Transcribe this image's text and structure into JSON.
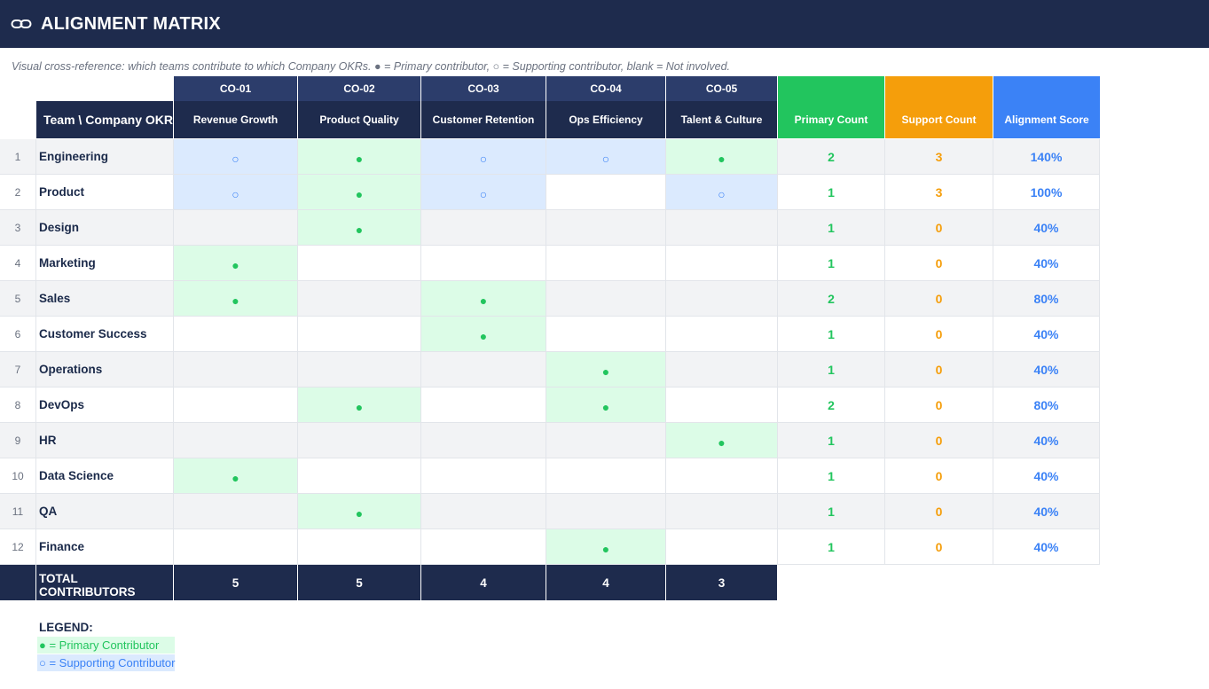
{
  "header": {
    "title": "ALIGNMENT MATRIX",
    "icon": "link-icon",
    "subtitle": "Visual cross-reference: which teams contribute to which Company OKRs. ● = Primary contributor, ○ = Supporting contributor, blank = Not involved."
  },
  "colors": {
    "navy": "#1e2b4d",
    "primary": "#22c55e",
    "support": "#f59e0b",
    "score": "#3b82f6"
  },
  "table": {
    "corner_label": "Team \\ Company OKR",
    "okrs": [
      {
        "code": "CO-01",
        "name": "Revenue Growth"
      },
      {
        "code": "CO-02",
        "name": "Product Quality"
      },
      {
        "code": "CO-03",
        "name": "Customer Retention"
      },
      {
        "code": "CO-04",
        "name": "Ops Efficiency"
      },
      {
        "code": "CO-05",
        "name": "Talent & Culture"
      }
    ],
    "stat_headers": {
      "primary": "Primary Count",
      "support": "Support Count",
      "score": "Alignment Score"
    },
    "symbols": {
      "P": "●",
      "S": "○"
    },
    "rows": [
      {
        "num": "1",
        "team": "Engineering",
        "marks": [
          "S",
          "P",
          "S",
          "S",
          "P"
        ],
        "primary": "2",
        "support": "3",
        "score": "140%"
      },
      {
        "num": "2",
        "team": "Product",
        "marks": [
          "S",
          "P",
          "S",
          "",
          "S"
        ],
        "primary": "1",
        "support": "3",
        "score": "100%"
      },
      {
        "num": "3",
        "team": "Design",
        "marks": [
          "",
          "P",
          "",
          "",
          ""
        ],
        "primary": "1",
        "support": "0",
        "score": "40%"
      },
      {
        "num": "4",
        "team": "Marketing",
        "marks": [
          "P",
          "",
          "",
          "",
          ""
        ],
        "primary": "1",
        "support": "0",
        "score": "40%"
      },
      {
        "num": "5",
        "team": "Sales",
        "marks": [
          "P",
          "",
          "P",
          "",
          ""
        ],
        "primary": "2",
        "support": "0",
        "score": "80%"
      },
      {
        "num": "6",
        "team": "Customer Success",
        "marks": [
          "",
          "",
          "P",
          "",
          ""
        ],
        "primary": "1",
        "support": "0",
        "score": "40%"
      },
      {
        "num": "7",
        "team": "Operations",
        "marks": [
          "",
          "",
          "",
          "P",
          ""
        ],
        "primary": "1",
        "support": "0",
        "score": "40%"
      },
      {
        "num": "8",
        "team": "DevOps",
        "marks": [
          "",
          "P",
          "",
          "P",
          ""
        ],
        "primary": "2",
        "support": "0",
        "score": "80%"
      },
      {
        "num": "9",
        "team": "HR",
        "marks": [
          "",
          "",
          "",
          "",
          "P"
        ],
        "primary": "1",
        "support": "0",
        "score": "40%"
      },
      {
        "num": "10",
        "team": "Data Science",
        "marks": [
          "P",
          "",
          "",
          "",
          ""
        ],
        "primary": "1",
        "support": "0",
        "score": "40%"
      },
      {
        "num": "11",
        "team": "QA",
        "marks": [
          "",
          "P",
          "",
          "",
          ""
        ],
        "primary": "1",
        "support": "0",
        "score": "40%"
      },
      {
        "num": "12",
        "team": "Finance",
        "marks": [
          "",
          "",
          "",
          "P",
          ""
        ],
        "primary": "1",
        "support": "0",
        "score": "40%"
      }
    ],
    "total_label": "TOTAL CONTRIBUTORS",
    "totals": [
      "5",
      "5",
      "4",
      "4",
      "3"
    ]
  },
  "legend": {
    "title": "LEGEND:",
    "primary": "● = Primary Contributor",
    "support": "○ = Supporting Contributor"
  }
}
